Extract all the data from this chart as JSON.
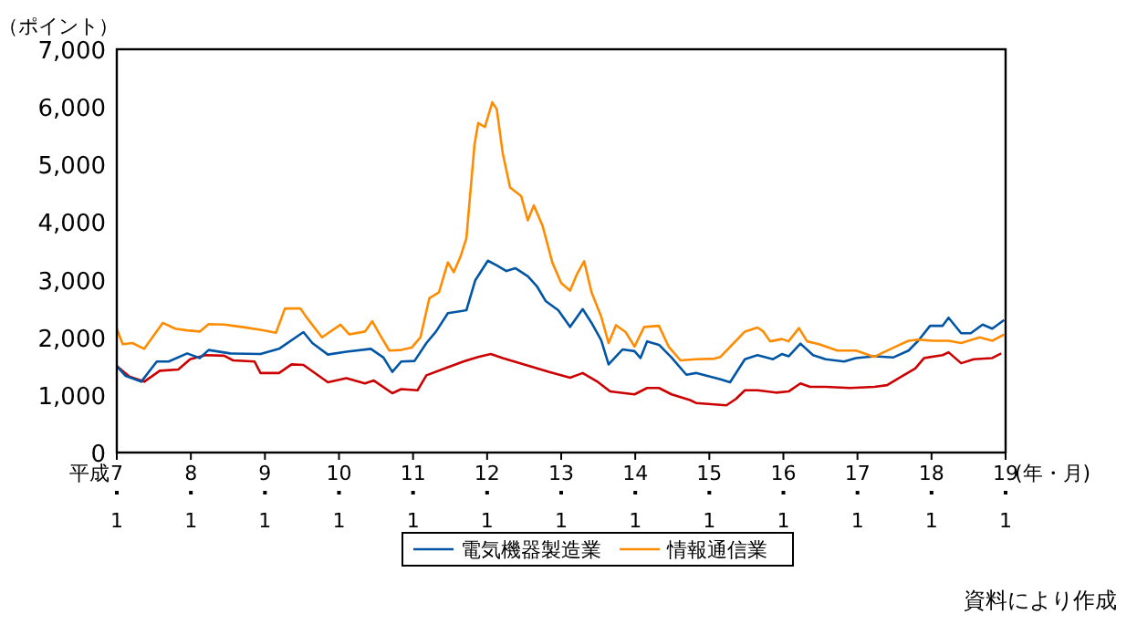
{
  "chart_data": {
    "type": "line",
    "ylabel": "（ポイント）",
    "xlabel": "(年・月)",
    "xlim": [
      7,
      19
    ],
    "ylim": [
      0,
      7000
    ],
    "xticks": [
      7,
      8,
      9,
      10,
      11,
      12,
      13,
      14,
      15,
      16,
      17,
      18,
      19
    ],
    "annotations": [
      "平成",
      "資料により作成",
      "1",
      "1",
      "1",
      "1",
      "1",
      "1",
      "1",
      "1",
      "1",
      "1",
      "1",
      "1",
      "1"
    ],
    "yticks": [
      {
        "value": 0,
        "label": "0"
      },
      {
        "value": 1000,
        "label": "1,000"
      },
      {
        "value": 2000,
        "label": "2,000"
      },
      {
        "value": 3000,
        "label": "3,000"
      },
      {
        "value": 4000,
        "label": "4,000"
      },
      {
        "value": 5000,
        "label": "5,000"
      },
      {
        "value": 6000,
        "label": "6,000"
      },
      {
        "value": 7000,
        "label": "7,000"
      }
    ],
    "grid": false,
    "legend": "bottom",
    "line_style": "solid",
    "marker": "none",
    "series": [
      {
        "color": "#cc0000",
        "x": [
          7.0,
          7.17,
          7.37,
          7.58,
          7.83,
          7.99,
          8.2,
          8.45,
          8.57,
          8.86,
          8.94,
          9.19,
          9.36,
          9.52,
          9.85,
          10.1,
          10.35,
          10.47,
          10.72,
          10.84,
          11.06,
          11.18,
          11.43,
          11.68,
          11.88,
          12.05,
          12.21,
          12.5,
          12.83,
          13.12,
          13.29,
          13.5,
          13.66,
          13.99,
          14.16,
          14.32,
          14.49,
          14.74,
          14.82,
          15.23,
          15.36,
          15.48,
          15.65,
          15.9,
          16.07,
          16.23,
          16.36,
          16.57,
          16.9,
          17.23,
          17.4,
          17.57,
          17.78,
          17.9,
          18.15,
          18.23,
          18.4,
          18.57,
          18.82,
          18.94
        ],
        "values": [
          1500,
          1320,
          1230,
          1420,
          1440,
          1620,
          1690,
          1680,
          1600,
          1580,
          1380,
          1380,
          1530,
          1520,
          1220,
          1290,
          1200,
          1250,
          1030,
          1100,
          1080,
          1340,
          1460,
          1580,
          1660,
          1710,
          1640,
          1530,
          1400,
          1300,
          1380,
          1220,
          1060,
          1010,
          1120,
          1120,
          1010,
          910,
          860,
          820,
          930,
          1080,
          1080,
          1040,
          1060,
          1200,
          1140,
          1140,
          1120,
          1140,
          1170,
          1300,
          1460,
          1640,
          1690,
          1740,
          1550,
          1620,
          1640,
          1720
        ]
      },
      {
        "name": "電気機器製造業",
        "color": "#0055a5",
        "x": [
          7.0,
          7.12,
          7.33,
          7.54,
          7.7,
          7.95,
          8.12,
          8.24,
          8.53,
          8.94,
          9.19,
          9.52,
          9.64,
          9.85,
          10.1,
          10.43,
          10.6,
          10.72,
          10.84,
          11.02,
          11.18,
          11.31,
          11.47,
          11.72,
          11.84,
          12.01,
          12.13,
          12.26,
          12.38,
          12.55,
          12.67,
          12.79,
          12.96,
          13.12,
          13.29,
          13.41,
          13.54,
          13.64,
          13.83,
          13.99,
          14.07,
          14.16,
          14.32,
          14.49,
          14.69,
          14.82,
          15.15,
          15.28,
          15.48,
          15.65,
          15.86,
          15.98,
          16.07,
          16.23,
          16.4,
          16.57,
          16.82,
          16.98,
          17.23,
          17.48,
          17.69,
          17.82,
          17.98,
          18.15,
          18.23,
          18.4,
          18.53,
          18.69,
          18.82,
          18.98
        ],
        "values": [
          1500,
          1330,
          1230,
          1580,
          1580,
          1720,
          1640,
          1780,
          1720,
          1710,
          1800,
          2090,
          1900,
          1700,
          1750,
          1800,
          1650,
          1400,
          1580,
          1590,
          1900,
          2100,
          2420,
          2470,
          2990,
          3330,
          3250,
          3150,
          3200,
          3060,
          2890,
          2630,
          2470,
          2180,
          2490,
          2250,
          1950,
          1530,
          1790,
          1760,
          1640,
          1930,
          1870,
          1650,
          1350,
          1380,
          1270,
          1220,
          1620,
          1690,
          1620,
          1710,
          1670,
          1890,
          1690,
          1620,
          1580,
          1640,
          1670,
          1650,
          1770,
          1940,
          2200,
          2200,
          2340,
          2070,
          2070,
          2220,
          2150,
          2300
        ]
      },
      {
        "name": "情報通信業",
        "color": "#ff8c00",
        "x": [
          7.0,
          7.08,
          7.21,
          7.37,
          7.62,
          7.79,
          7.95,
          8.12,
          8.24,
          8.45,
          8.69,
          8.94,
          9.15,
          9.27,
          9.48,
          9.56,
          9.77,
          10.02,
          10.14,
          10.35,
          10.45,
          10.55,
          10.68,
          10.84,
          10.98,
          11.1,
          11.22,
          11.35,
          11.47,
          11.55,
          11.64,
          11.72,
          11.83,
          11.88,
          11.97,
          12.07,
          12.13,
          12.21,
          12.31,
          12.46,
          12.55,
          12.63,
          12.75,
          12.88,
          13.0,
          13.12,
          13.21,
          13.31,
          13.41,
          13.54,
          13.64,
          13.74,
          13.87,
          13.99,
          14.12,
          14.32,
          14.45,
          14.61,
          14.82,
          15.07,
          15.15,
          15.36,
          15.48,
          15.65,
          15.73,
          15.82,
          15.98,
          16.07,
          16.21,
          16.32,
          16.48,
          16.73,
          16.98,
          17.23,
          17.32,
          17.57,
          17.69,
          17.82,
          18.02,
          18.23,
          18.4,
          18.65,
          18.82,
          18.98
        ],
        "values": [
          2150,
          1880,
          1900,
          1800,
          2250,
          2150,
          2120,
          2100,
          2230,
          2220,
          2180,
          2130,
          2080,
          2500,
          2500,
          2350,
          2000,
          2220,
          2050,
          2100,
          2280,
          2050,
          1770,
          1780,
          1820,
          2000,
          2680,
          2780,
          3300,
          3130,
          3400,
          3720,
          5350,
          5720,
          5650,
          6080,
          5960,
          5200,
          4600,
          4450,
          4030,
          4290,
          3930,
          3300,
          2940,
          2810,
          3090,
          3320,
          2780,
          2360,
          1900,
          2210,
          2090,
          1840,
          2180,
          2200,
          1840,
          1600,
          1620,
          1630,
          1660,
          1940,
          2100,
          2170,
          2100,
          1930,
          1970,
          1930,
          2160,
          1930,
          1880,
          1770,
          1770,
          1660,
          1720,
          1870,
          1940,
          1960,
          1940,
          1940,
          1900,
          2000,
          1940,
          2050
        ]
      }
    ]
  }
}
